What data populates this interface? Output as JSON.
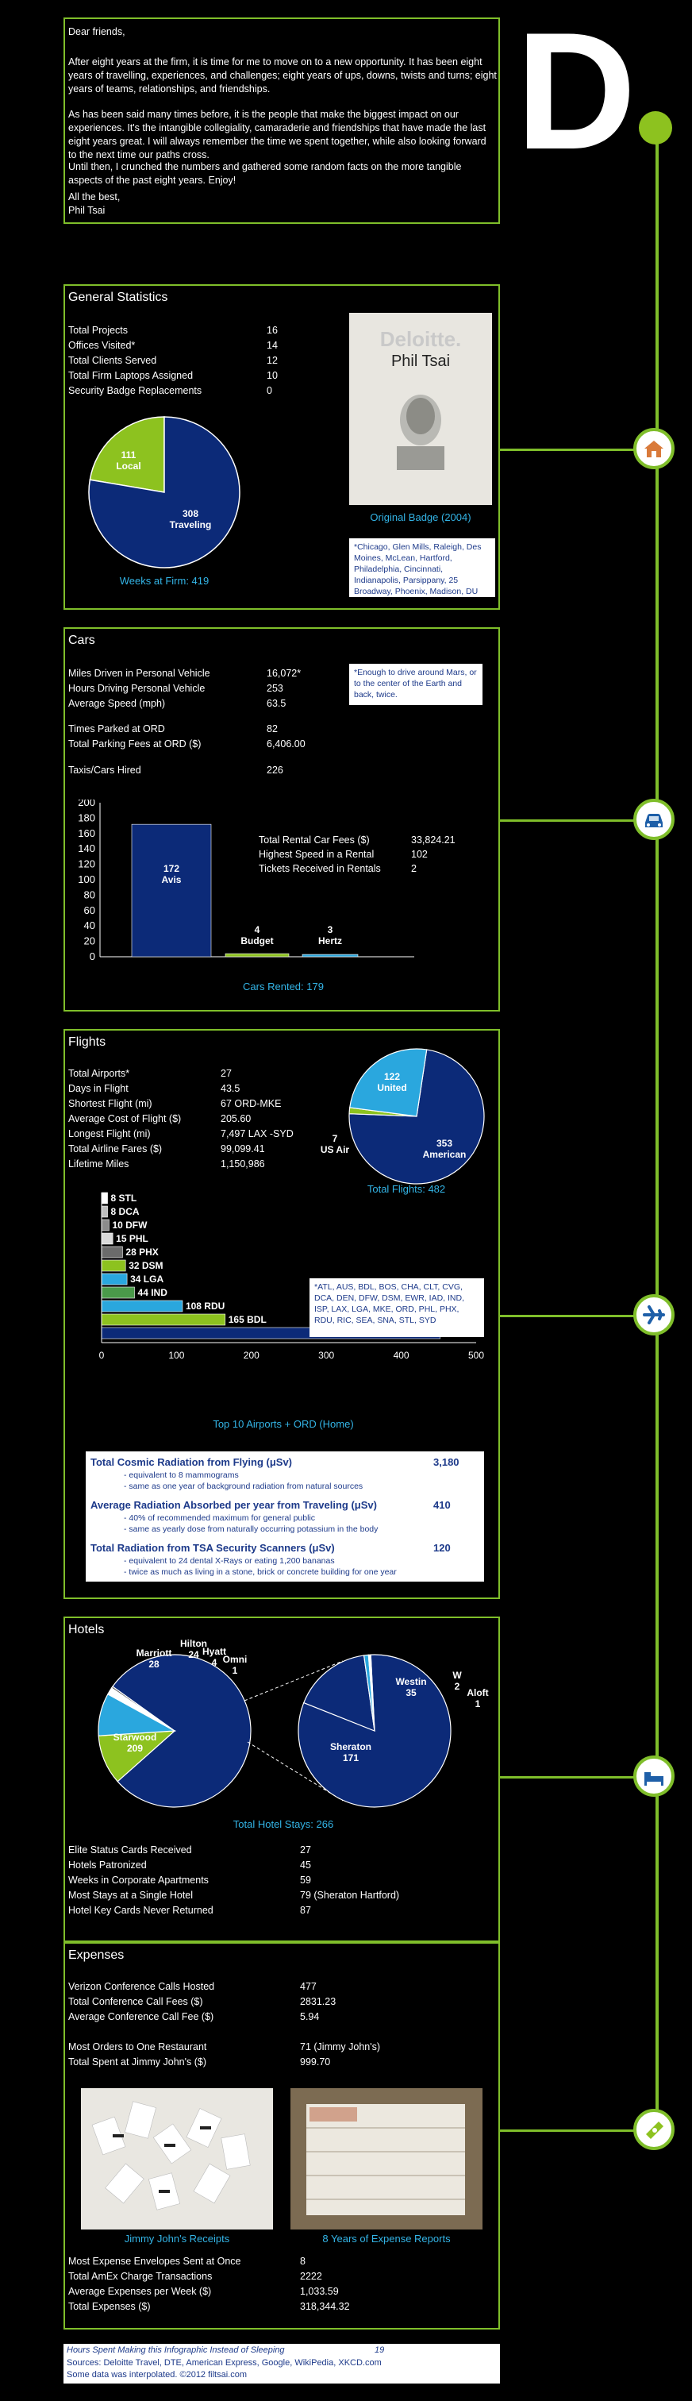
{
  "logo": {
    "letter": "D"
  },
  "letter": {
    "greeting": "Dear friends,",
    "p1": "After eight years at the firm, it is time for me to move on to a new opportunity.  It has been  eight years of travelling, experiences, and challenges; eight years of ups, downs, twists and turns; eight years of teams, relationships, and friendships.",
    "p2": "As has been said many times before, it is the people that make the biggest impact on our experiences.  It's the intangible collegiality, camaraderie and friendships that have made the last eight years great.  I will always remember the time we spent together, while also looking forward to the next time our paths cross.",
    "p3": "Until then, I crunched the numbers and gathered some random facts on the more tangible aspects of the past eight years. Enjoy!",
    "closing": "All the best,",
    "name": "Phil Tsai"
  },
  "general": {
    "title": "General Statistics",
    "stats": [
      {
        "label": "Total Projects",
        "value": "16"
      },
      {
        "label": "Offices Visited*",
        "value": "14"
      },
      {
        "label": "Total Clients Served",
        "value": "12"
      },
      {
        "label": "Total Firm Laptops Assigned",
        "value": "10"
      },
      {
        "label": "Security Badge Replacements",
        "value": "0"
      }
    ],
    "pie": {
      "local_value": "111",
      "local_label": "Local",
      "travel_value": "308",
      "travel_label": "Traveling"
    },
    "pie_caption": "Weeks at Firm: 419",
    "badge_logo": "Deloitte.",
    "badge_name": "Phil Tsai",
    "badge_caption": "Original Badge (2004)",
    "note": "*Chicago, Glen Mills, Raleigh, Des Moines, McLean, Hartford, Philadelphia, Cincinnati, Indianapolis, Parsippany, 25 Broadway, Phoenix, Madison, DU"
  },
  "cars": {
    "title": "Cars",
    "stats": [
      {
        "label": "Miles Driven in Personal Vehicle",
        "value": "16,072*"
      },
      {
        "label": "Hours Driving Personal Vehicle",
        "value": "253"
      },
      {
        "label": "Average Speed (mph)",
        "value": "63.5"
      }
    ],
    "stats2": [
      {
        "label": "Times Parked at ORD",
        "value": "82"
      },
      {
        "label": "Total Parking Fees at ORD ($)",
        "value": "6,406.00"
      }
    ],
    "stats3": [
      {
        "label": "Taxis/Cars Hired",
        "value": "226"
      }
    ],
    "note": "*Enough to drive around Mars, or to the center of the Earth and back, twice.",
    "rental_stats": [
      {
        "label": "Total Rental Car Fees ($)",
        "value": "33,824.21"
      },
      {
        "label": "Highest Speed in a Rental",
        "value": "102"
      },
      {
        "label": "Tickets Received in Rentals",
        "value": "2"
      }
    ],
    "chart_caption": "Cars Rented: 179"
  },
  "flights": {
    "title": "Flights",
    "stats": [
      {
        "label": "Total Airports*",
        "value": "27"
      },
      {
        "label": "Days in Flight",
        "value": "43.5"
      },
      {
        "label": "Shortest Flight (mi)",
        "value": "67 ORD-MKE"
      },
      {
        "label": "Average Cost of Flight ($)",
        "value": "205.60"
      },
      {
        "label": "Longest Flight (mi)",
        "value": "7,497 LAX -SYD"
      },
      {
        "label": "Total Airline Fares ($)",
        "value": "99,099.41"
      },
      {
        "label": "Lifetime Miles",
        "value": "1,150,986"
      }
    ],
    "pie_caption": "Total Flights: 482",
    "note": "*ATL, AUS, BDL, BOS, CHA, CLT, CVG, DCA, DEN, DFW, DSM, EWR, IAD, IND, ISP, LAX, LGA, MKE, ORD, PHL, PHX, RDU, RIC, SEA, SNA, STL, SYD",
    "bar_caption": "Top 10 Airports + ORD (Home)",
    "radiation": [
      {
        "label": "Total Cosmic Radiation from Flying (μSv)",
        "value": "3,180",
        "subs": [
          "- equivalent to 8 mammograms",
          "- same as one year of background radiation from natural sources"
        ]
      },
      {
        "label": "Average Radiation Absorbed per year from Traveling (μSv)",
        "value": "410",
        "subs": [
          "- 40% of recommended maximum for general public",
          "- same as yearly dose from naturally occurring potassium in the body"
        ]
      },
      {
        "label": "Total Radiation from TSA Security Scanners  (μSv)",
        "value": "120",
        "subs": [
          "- equivalent to 24 dental X-Rays or eating 1,200 bananas",
          "- twice as much as living in a stone, brick or concrete building for one year"
        ]
      }
    ]
  },
  "hotels": {
    "title": "Hotels",
    "caption": "Total Hotel Stays: 266",
    "stats": [
      {
        "label": "Elite Status Cards Received",
        "value": "27"
      },
      {
        "label": "Hotels Patronized",
        "value": "45"
      },
      {
        "label": "Weeks in Corporate Apartments",
        "value": "59"
      },
      {
        "label": "Most Stays at a Single Hotel",
        "value": "79 (Sheraton Hartford)"
      },
      {
        "label": "Hotel Key Cards Never Returned",
        "value": "87"
      }
    ]
  },
  "expenses": {
    "title": "Expenses",
    "stats": [
      {
        "label": "Verizon Conference Calls Hosted",
        "value": "477"
      },
      {
        "label": "Total Conference Call Fees ($)",
        "value": "2831.23"
      },
      {
        "label": "Average Conference Call Fee  ($)",
        "value": "5.94"
      }
    ],
    "stats2": [
      {
        "label": "Most Orders to One Restaurant",
        "value": "71 (Jimmy John's)"
      },
      {
        "label": "Total Spent at Jimmy John's ($)",
        "value": "999.70"
      }
    ],
    "photo1_caption": "Jimmy John's Receipts",
    "photo2_caption": "8 Years of Expense Reports",
    "stats3": [
      {
        "label": "Most Expense Envelopes Sent at Once",
        "value": "8"
      },
      {
        "label": "Total AmEx Charge Transactions",
        "value": "2222"
      },
      {
        "label": "Average Expenses per Week ($)",
        "value": "1,033.59"
      },
      {
        "label": "Total Expenses ($)",
        "value": "318,344.32"
      }
    ]
  },
  "footer": {
    "hours_label": "Hours Spent Making this Infographic Instead of Sleeping",
    "hours_value": "19",
    "sources": "Sources: Deloitte Travel, DTE, American Express, Google, WikiPedia, XKCD.com",
    "interp": "Some data was interpolated.  ©2012 filtsai.com"
  },
  "chart_data": [
    {
      "type": "pie",
      "title": "",
      "labels": [
        "Local",
        "Traveling"
      ],
      "values": [
        111,
        308
      ],
      "colors": [
        "#8dc21f",
        "#0c2a78"
      ]
    },
    {
      "type": "bar",
      "title": "",
      "categories": [
        "Avis",
        "Budget",
        "Hertz"
      ],
      "values": [
        172,
        4,
        3
      ],
      "ylim": [
        0,
        200
      ],
      "yticks": [
        0,
        20,
        40,
        60,
        80,
        100,
        120,
        140,
        160,
        180,
        200
      ],
      "colors": [
        "#0c2a78",
        "#8dc21f",
        "#2aa7de"
      ]
    },
    {
      "type": "pie",
      "title": "",
      "labels": [
        "American",
        "US Air",
        "United"
      ],
      "values": [
        353,
        7,
        122
      ],
      "colors": [
        "#0c2a78",
        "#8dc21f",
        "#2aa7de"
      ]
    },
    {
      "type": "bar",
      "orientation": "horizontal",
      "title": "",
      "categories": [
        "STL",
        "DCA",
        "DFW",
        "PHL",
        "PHX",
        "DSM",
        "LGA",
        "IND",
        "RDU",
        "BDL",
        "ORD"
      ],
      "values": [
        8,
        8,
        10,
        15,
        28,
        32,
        34,
        44,
        108,
        165,
        452
      ],
      "xlim": [
        0,
        500
      ],
      "xticks": [
        0,
        100,
        200,
        300,
        400,
        500
      ],
      "colors": [
        "#ffffff",
        "#bfbfbf",
        "#8c8c8c",
        "#d9d9d9",
        "#6b6b6b",
        "#8dc21f",
        "#2aa7de",
        "#4a9a4a",
        "#2aa7de",
        "#8dc21f",
        "#0c2a78"
      ]
    },
    {
      "type": "pie",
      "title": "",
      "labels": [
        "Starwood",
        "Marriott",
        "Hilton",
        "Hyatt",
        "Omni"
      ],
      "values": [
        209,
        28,
        24,
        4,
        1
      ],
      "colors": [
        "#0c2a78",
        "#8dc21f",
        "#2aa7de",
        "#ffffff",
        "#555555"
      ]
    },
    {
      "type": "pie",
      "title": "",
      "labels": [
        "Sheraton",
        "Westin",
        "W",
        "Aloft"
      ],
      "values": [
        171,
        35,
        2,
        1
      ],
      "colors": [
        "#0c2a78",
        "#0c2a78",
        "#2aa7de",
        "#ffffff"
      ]
    }
  ]
}
